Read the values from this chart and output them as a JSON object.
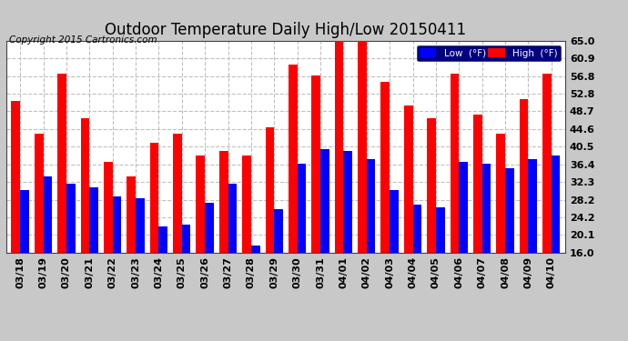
{
  "title": "Outdoor Temperature Daily High/Low 20150411",
  "copyright": "Copyright 2015 Cartronics.com",
  "legend_low": "Low  (°F)",
  "legend_high": "High  (°F)",
  "dates": [
    "03/18",
    "03/19",
    "03/20",
    "03/21",
    "03/22",
    "03/23",
    "03/24",
    "03/25",
    "03/26",
    "03/27",
    "03/28",
    "03/29",
    "03/30",
    "03/31",
    "04/01",
    "04/02",
    "04/03",
    "04/04",
    "04/05",
    "04/06",
    "04/07",
    "04/08",
    "04/09",
    "04/10"
  ],
  "high": [
    51.0,
    43.5,
    57.5,
    47.0,
    37.0,
    33.5,
    41.5,
    43.5,
    38.5,
    39.5,
    38.5,
    45.0,
    59.5,
    57.0,
    65.0,
    65.0,
    55.5,
    50.0,
    47.0,
    57.5,
    48.0,
    43.5,
    51.5,
    57.5
  ],
  "low": [
    30.5,
    33.5,
    32.0,
    31.0,
    29.0,
    28.5,
    22.0,
    22.5,
    27.5,
    32.0,
    17.5,
    26.0,
    36.5,
    40.0,
    39.5,
    37.5,
    30.5,
    27.0,
    26.5,
    37.0,
    36.5,
    35.5,
    37.5,
    38.5
  ],
  "high_color": "#ff0000",
  "low_color": "#0000ff",
  "bg_color": "#c8c8c8",
  "plot_bg": "#ffffff",
  "grid_color": "#c0c0c0",
  "ylim_min": 16.0,
  "ylim_max": 65.0,
  "yticks": [
    16.0,
    20.1,
    24.2,
    28.2,
    32.3,
    36.4,
    40.5,
    44.6,
    48.7,
    52.8,
    56.8,
    60.9,
    65.0
  ],
  "bar_width": 0.38,
  "title_fontsize": 12,
  "tick_fontsize": 8.0,
  "copyright_fontsize": 7.5
}
